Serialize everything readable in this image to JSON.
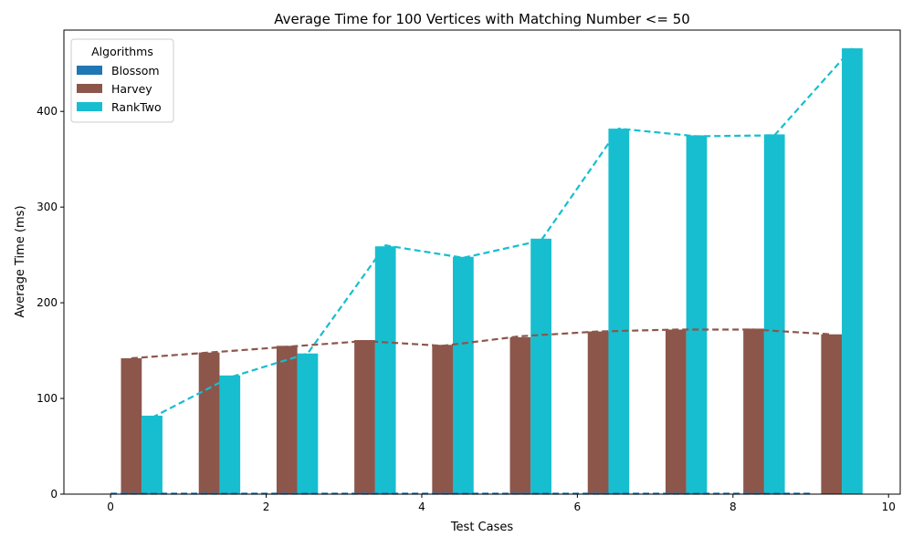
{
  "chart_data": {
    "type": "bar",
    "title": "Average Time for 100 Vertices with Matching Number <= 50",
    "xlabel": "Test Cases",
    "ylabel": "Average Time (ms)",
    "x": [
      0,
      1,
      2,
      3,
      4,
      5,
      6,
      7,
      8,
      9
    ],
    "xlim": [
      -0.6,
      10.15
    ],
    "ylim": [
      0,
      485
    ],
    "xticks": [
      0,
      2,
      4,
      6,
      8,
      10
    ],
    "yticks": [
      0,
      100,
      200,
      300,
      400
    ],
    "bar_width": 0.267,
    "legend": {
      "title": "Algorithms",
      "position": "upper-left"
    },
    "series": [
      {
        "name": "Blossom",
        "color": "#1f77b4",
        "offset": 0.0,
        "values": [
          0.5,
          0.5,
          0.5,
          0.5,
          0.5,
          0.5,
          0.5,
          0.5,
          0.5,
          0.5
        ],
        "trend": [
          0.5,
          0.5,
          0.5,
          0.5,
          0.5,
          0.5,
          0.5,
          0.5,
          0.5,
          0.5
        ]
      },
      {
        "name": "Harvey",
        "color": "#8c564b",
        "offset": 0.267,
        "values": [
          142,
          148,
          155,
          161,
          156,
          164,
          170,
          172,
          173,
          167
        ],
        "trend": [
          142,
          148,
          154,
          160,
          155,
          165,
          170,
          172,
          172,
          167
        ]
      },
      {
        "name": "RankTwo",
        "color": "#17becf",
        "offset": 0.533,
        "values": [
          82,
          124,
          147,
          259,
          248,
          267,
          382,
          375,
          376,
          466
        ],
        "trend": [
          80,
          122,
          147,
          260,
          247,
          265,
          382,
          374,
          375,
          466
        ]
      }
    ]
  }
}
